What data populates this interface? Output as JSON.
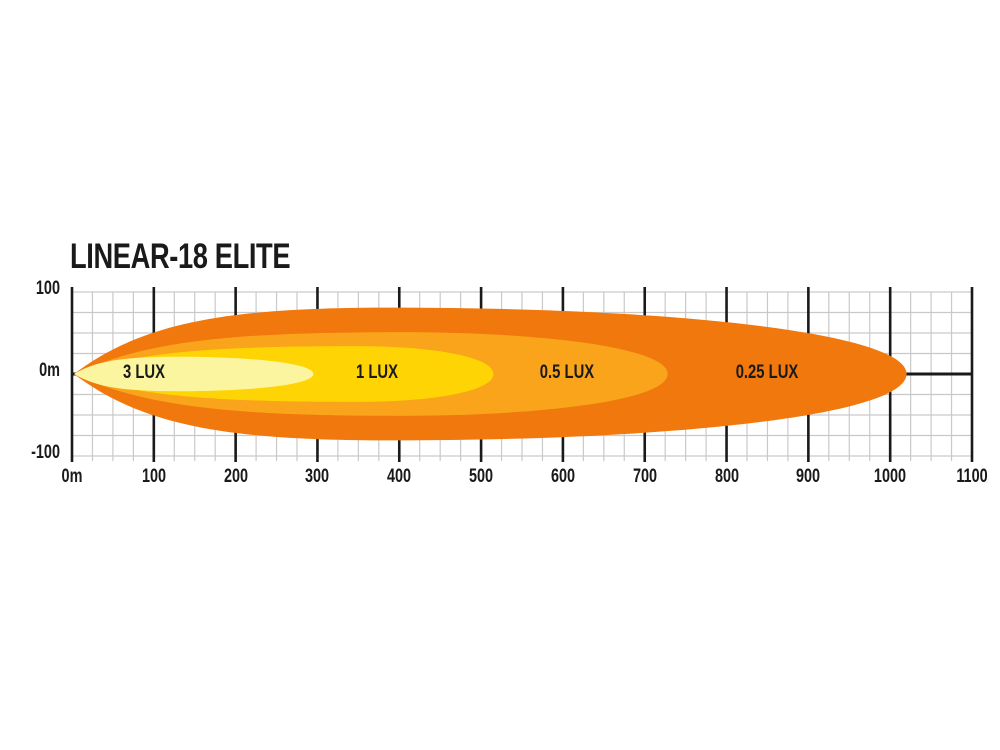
{
  "page": {
    "background": "#FFFFFF"
  },
  "chart_data": {
    "type": "area",
    "title": "LINEAR-18 ELITE",
    "subtitle": "",
    "legend": "none",
    "grid": {
      "on": true,
      "minor_step_m": 25,
      "major_step_m": 100
    },
    "x_axis": {
      "unit": "m",
      "range": [
        0,
        1100
      ],
      "ticks": [
        {
          "value": 0,
          "label": "0m"
        },
        {
          "value": 100,
          "label": "100"
        },
        {
          "value": 200,
          "label": "200"
        },
        {
          "value": 300,
          "label": "300"
        },
        {
          "value": 400,
          "label": "400"
        },
        {
          "value": 500,
          "label": "500"
        },
        {
          "value": 600,
          "label": "600"
        },
        {
          "value": 700,
          "label": "700"
        },
        {
          "value": 800,
          "label": "800"
        },
        {
          "value": 900,
          "label": "900"
        },
        {
          "value": 1000,
          "label": "1000"
        },
        {
          "value": 1100,
          "label": "1100"
        }
      ]
    },
    "y_axis": {
      "unit": "m",
      "range": [
        -100,
        100
      ],
      "minor_step": 25,
      "ticks": [
        {
          "value": 100,
          "label": "100"
        },
        {
          "value": 0,
          "label": "0m"
        },
        {
          "value": -100,
          "label": "-100"
        }
      ]
    },
    "zones": [
      {
        "label": "0.25 LUX",
        "lux": 0.25,
        "reach_m": 1020,
        "half_width_m": 81,
        "widest_at_m": 390,
        "label_at_m": 850,
        "color": "#F1780D"
      },
      {
        "label": "0.5 LUX",
        "lux": 0.5,
        "reach_m": 728,
        "half_width_m": 51,
        "widest_at_m": 400,
        "label_at_m": 605,
        "color": "#F9A41B"
      },
      {
        "label": "1 LUX",
        "lux": 1,
        "reach_m": 515,
        "half_width_m": 34,
        "widest_at_m": 350,
        "label_at_m": 373,
        "color": "#FFD405"
      },
      {
        "label": "3 LUX",
        "lux": 3,
        "reach_m": 295,
        "half_width_m": 21,
        "widest_at_m": 130,
        "label_at_m": 88,
        "color": "#FBF5A0"
      }
    ],
    "colors": {
      "grid_minor": "#C9C9C9",
      "axis": "#1A1A1A",
      "text": "#1A1A1A",
      "background": "#FFFFFF"
    }
  }
}
